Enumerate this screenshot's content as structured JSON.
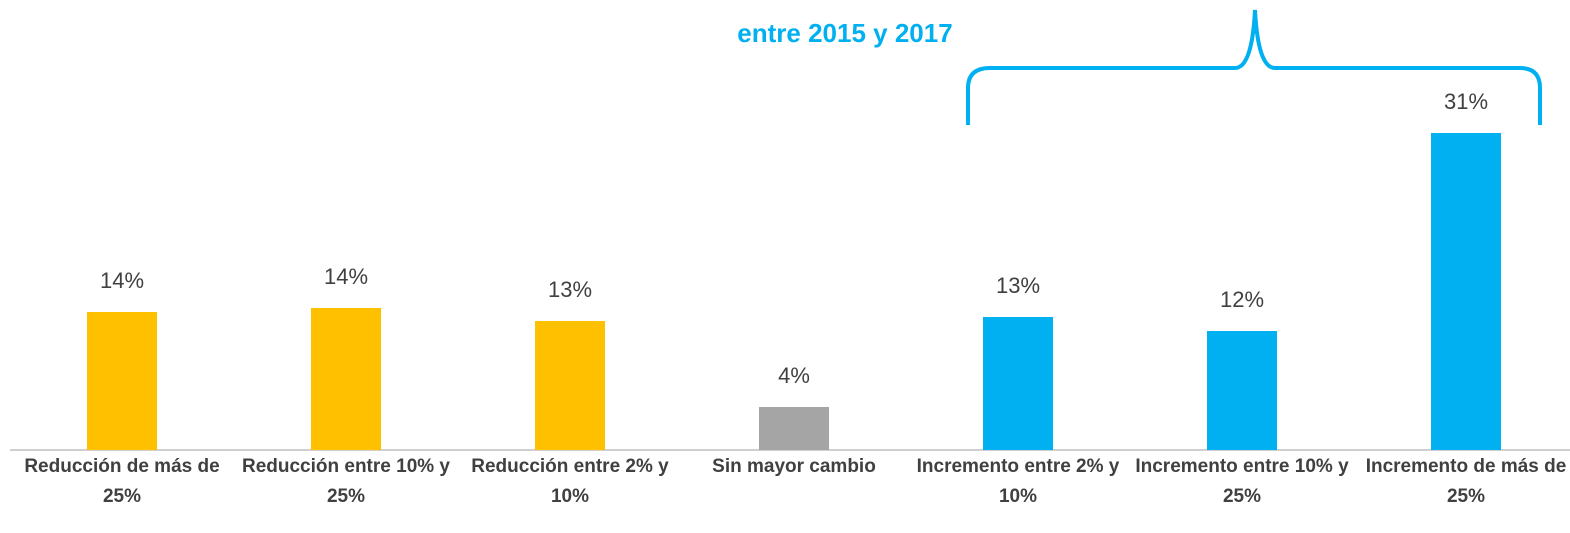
{
  "chart_data": {
    "type": "bar",
    "annotation": "entre 2015 y 2017",
    "categories": [
      "Reducción de más de 25%",
      "Reducción entre 10% y 25%",
      "Reducción entre 2% y 10%",
      "Sin mayor cambio",
      "Incremento entre 2% y 10%",
      "Incremento entre 10% y 25%",
      "Incremento de más de 25%"
    ],
    "values": [
      13.5,
      13.9,
      12.6,
      4.2,
      13.0,
      11.6,
      31.0
    ],
    "value_labels": [
      "14%",
      "14%",
      "13%",
      "4%",
      "13%",
      "12%",
      "31%"
    ],
    "colors": [
      "#FFC000",
      "#FFC000",
      "#FFC000",
      "#A5A5A5",
      "#00B0F0",
      "#00B0F0",
      "#00B0F0"
    ]
  }
}
